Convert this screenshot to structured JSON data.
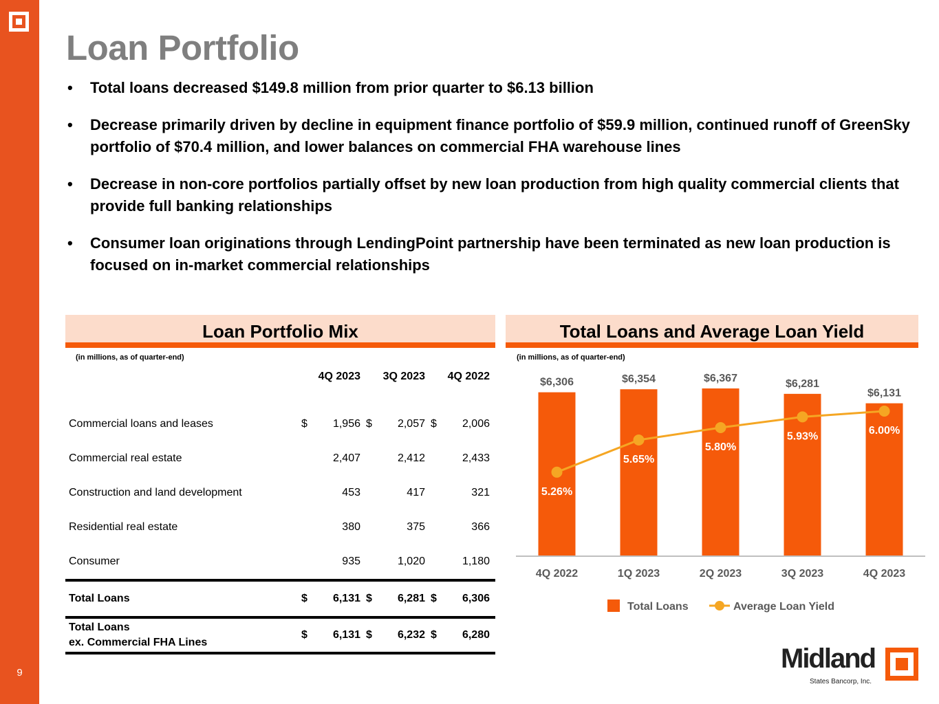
{
  "page": {
    "title": "Loan Portfolio",
    "page_number": "9"
  },
  "bullets": [
    "Total loans decreased $149.8 million from prior quarter to $6.13 billion",
    "Decrease primarily driven by decline in equipment finance portfolio of $59.9 million, continued runoff of GreenSky portfolio of $70.4 million, and lower balances on commercial FHA warehouse lines",
    "Decrease in non-core portfolios partially offset by new loan production from high quality commercial clients that provide full banking relationships",
    "Consumer loan originations through LendingPoint partnership have been terminated as new loan production is focused on in-market commercial relationships"
  ],
  "mix": {
    "title": "Loan Portfolio Mix",
    "note": "(in millions, as of quarter-end)",
    "columns": [
      "4Q 2023",
      "3Q 2023",
      "4Q 2022"
    ],
    "rows": [
      {
        "label": "Commercial loans and leases",
        "cur": "$",
        "values": [
          "1,956",
          "2,057",
          "2,006"
        ]
      },
      {
        "label": "Commercial real estate",
        "cur": "",
        "values": [
          "2,407",
          "2,412",
          "2,433"
        ]
      },
      {
        "label": "Construction and land development",
        "cur": "",
        "values": [
          "453",
          "417",
          "321"
        ]
      },
      {
        "label": "Residential real estate",
        "cur": "",
        "values": [
          "380",
          "375",
          "366"
        ]
      },
      {
        "label": "Consumer",
        "cur": "",
        "values": [
          "935",
          "1,020",
          "1,180"
        ]
      }
    ],
    "total": {
      "label": "Total Loans",
      "cur": "$",
      "values": [
        "6,131",
        "6,281",
        "6,306"
      ]
    },
    "total_ex": {
      "label_1": "Total Loans",
      "label_2": "ex. Commercial FHA Lines",
      "cur": "$",
      "values": [
        "6,131",
        "6,232",
        "6,280"
      ]
    }
  },
  "chart_data": {
    "type": "bar",
    "title": "Total Loans and Average Loan Yield",
    "subtitle": "(in millions, as of quarter-end)",
    "categories": [
      "4Q 2022",
      "1Q 2023",
      "2Q 2023",
      "3Q 2023",
      "4Q 2023"
    ],
    "series": [
      {
        "name": "Total Loans",
        "type": "bar",
        "values": [
          6306,
          6354,
          6367,
          6281,
          6131
        ],
        "labels": [
          "$6,306",
          "$6,354",
          "$6,367",
          "$6,281",
          "$6,131"
        ],
        "color": "#F55A0A"
      },
      {
        "name": "Average Loan Yield",
        "type": "line",
        "values": [
          5.26,
          5.65,
          5.8,
          5.93,
          6.0
        ],
        "labels": [
          "5.26%",
          "5.65%",
          "5.80%",
          "5.93%",
          "6.00%"
        ],
        "color": "#F5A623"
      }
    ],
    "legend": "bottom",
    "grid": false,
    "xlabel": "",
    "ylabel": ""
  },
  "logo": {
    "name": "Midland",
    "subtitle": "States Bancorp, Inc."
  },
  "colors": {
    "accent": "#E8531F",
    "bar": "#F55A0A",
    "line": "#F5A623",
    "header_bg": "#FCDCCB",
    "title_gray": "#7F7F7F"
  }
}
